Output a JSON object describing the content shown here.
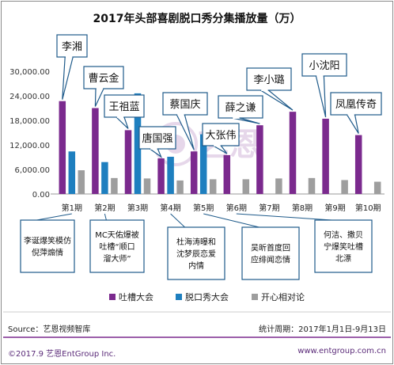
{
  "chart_data": {
    "type": "bar",
    "title": "2017年头部喜剧脱口秀分集播放量（万）",
    "categories": [
      "第1期",
      "第2期",
      "第3期",
      "第4期",
      "第5期",
      "第6期",
      "第7期",
      "第8期",
      "第9期",
      "第10期"
    ],
    "y_ticks": [
      "0.00",
      "6,000.00",
      "12,000.00",
      "18,000.00",
      "24,000.00",
      "30,000.00"
    ],
    "ylim": [
      0,
      30000
    ],
    "grid": false,
    "legend_position": "bottom",
    "series": [
      {
        "name": "吐槽大会",
        "color": "#7b2a8e",
        "values": [
          22700,
          21000,
          15600,
          8700,
          10400,
          9500,
          16800,
          20100,
          18400,
          14400
        ]
      },
      {
        "name": "脱口秀大会",
        "color": "#1e7fbf",
        "values": [
          10400,
          7800,
          24600,
          9100,
          14600,
          null,
          null,
          null,
          null,
          null
        ]
      },
      {
        "name": "开心相对论",
        "color": "#9e9e9e",
        "values": [
          5800,
          3900,
          3800,
          3300,
          3600,
          3600,
          3800,
          3900,
          3400,
          3000
        ]
      }
    ],
    "name_labels": [
      "李湘",
      "曹云金",
      "王祖蓝",
      "唐国强",
      "蔡国庆",
      "大张伟",
      "薛之谦",
      "李小璐",
      "小沈阳",
      "凤凰传奇"
    ],
    "annotations": [
      {
        "lines": [
          "李诞爆笑模仿",
          "倪萍煽情"
        ]
      },
      {
        "lines": [
          "MC天佑爆被",
          "吐槽“顺口",
          "溜大师”"
        ]
      },
      {
        "lines": [
          "杜海涛曝和",
          "沈梦辰恋爱",
          "内情"
        ]
      },
      {
        "lines": [
          "吴昕首度回",
          "应绯闻恋情"
        ]
      },
      {
        "lines": [
          "何洁、撒贝",
          "宁爆笑吐槽",
          "北漂"
        ]
      }
    ]
  },
  "footer": {
    "source": "Source：艺恩视频智库",
    "period": "统计周期：2017年1月1日-9月13日",
    "copyright": "©2017.9  艺恩EntGroup Inc.",
    "website": "www.entgroup.com.cn"
  },
  "watermark": "艺恩",
  "colors": {
    "accent": "#7b2a8e",
    "callout_border": "#1e5a8a"
  }
}
